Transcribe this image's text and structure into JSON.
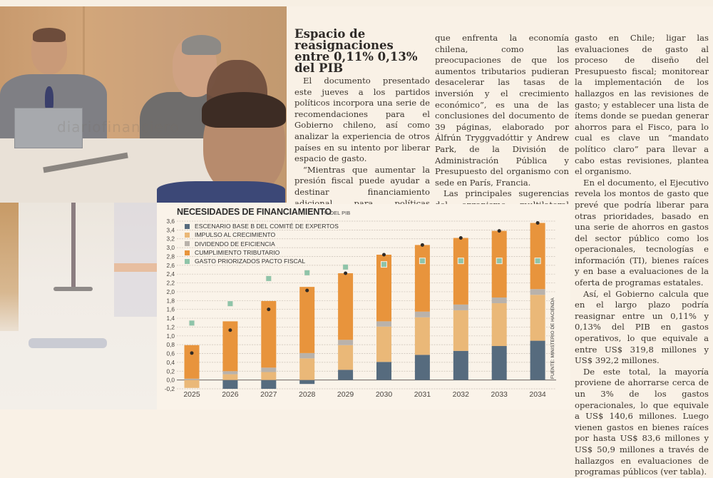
{
  "photo": {
    "description": "Reunión de trabajo con personas en una mesa",
    "watermark": "diariofinanciero"
  },
  "article": {
    "headline": "Espacio de reasignaciones entre 0,11% 0,13% del PIB",
    "paragraphs_col1": [
      "El documento presentado este jueves a los partidos políticos incorpora una serie de recomendaciones para el Gobierno chileno, así como analizar la experiencia de otros países en su intento por liberar espacio de gasto.",
      "“Mientras que aumentar la presión fiscal puede ayudar a destinar financiamiento adicional para políticas sociales, debe ser balanceado pensando en otros desafíos"
    ],
    "paragraphs_col2": [
      "que enfrenta la economía chilena, como las preocupaciones de que los aumentos tributarios pudieran desacelerar las tasas de inversión y el crecimiento económico”, es una de las conclusiones del documento de 39 páginas, elaborado por Álfrún Tryggvadóttir y Andrew Park, de la División de Administración Pública y Presupuesto del organismo con sede en París, Francia.",
      "Las principales sugerencias del organismo multilateral apuntan a institucionalizar y darle mayor periodicidad a las revisiones de"
    ],
    "paragraphs_col3": [
      "gasto en Chile; ligar las evaluaciones de gasto al proceso de diseño del Presupuesto fiscal; monitorear la implementación de los hallazgos en las revisiones de gasto; y establecer una lista de ítems donde se puedan generar ahorros para el Fisco, para lo cual es clave un “mandato político claro” para llevar a cabo estas revisiones, plantea el organismo.",
      "En el documento, el Ejecutivo revela los montos de gasto que prevé que podría liberar para otras prioridades, basado en una serie de ahorros en gastos del sector público como los operacionales, tecnologías e información (TI), bienes raíces y en base a evaluaciones de la oferta de programas estatales.",
      "Así, el Gobierno calcula que en el largo plazo podría reasignar entre un 0,11% y 0,13% del PIB en gastos operativos, lo que equivale a entre US$ 319,8 millones y US$ 392,2 millones.",
      "De este total, la mayoría proviene de ahorrarse cerca de un 3% de los gastos operacionales, lo que equivale a US$ 140,6 millones. Luego vienen gastos en bienes raíces por hasta US$ 83,6 millones y US$ 50,9 millones a través de hallazgos en evaluaciones de programas públicos (ver tabla)."
    ]
  },
  "chart_data": {
    "type": "bar",
    "stacked": true,
    "title": "NECESIDADES DE FINANCIAMIENTO",
    "unit_label": "% DEL PIB",
    "source": "FUENTE: MINISTERIO DE HACIENDA",
    "xlabel": "",
    "ylabel": "% del PIB",
    "ylim": [
      -0.2,
      3.6
    ],
    "yticks": [
      "3,6",
      "3,4",
      "3,2",
      "3,0",
      "2,8",
      "2,6",
      "2,4",
      "2,2",
      "2,0",
      "1,8",
      "1,6",
      "1,4",
      "1,2",
      "1,0",
      "0,8",
      "0,6",
      "0,4",
      "0,2",
      "0,0",
      "-0,2"
    ],
    "ytick_values": [
      3.6,
      3.4,
      3.2,
      3.0,
      2.8,
      2.6,
      2.4,
      2.2,
      2.0,
      1.8,
      1.6,
      1.4,
      1.2,
      1.0,
      0.8,
      0.6,
      0.4,
      0.2,
      0.0,
      -0.2
    ],
    "grid": true,
    "legend_position": "top-left",
    "categories": [
      "2025",
      "2026",
      "2027",
      "2028",
      "2029",
      "2030",
      "2031",
      "2032",
      "2033",
      "2034"
    ],
    "series": [
      {
        "name": "ESCENARIO BASE B DEL COMITÉ DE EXPERTOS",
        "kind": "bar",
        "color": "#566b7e",
        "values": [
          0.0,
          -0.2,
          -0.2,
          -0.09,
          0.23,
          0.41,
          0.57,
          0.66,
          0.77,
          0.89
        ]
      },
      {
        "name": "IMPULSO AL CRECIMIENTO",
        "kind": "bar",
        "color": "#eab878",
        "values": [
          -0.18,
          0.13,
          0.18,
          0.49,
          0.56,
          0.8,
          0.85,
          0.92,
          0.97,
          1.04
        ]
      },
      {
        "name": "DIVIDENDO DE EFICIENCIA",
        "kind": "bar",
        "color": "#b9b2ab",
        "values": [
          0.03,
          0.07,
          0.1,
          0.12,
          0.12,
          0.12,
          0.13,
          0.13,
          0.13,
          0.13
        ]
      },
      {
        "name": "CUMPLIMIENTO TRIBUTARIO",
        "kind": "bar",
        "color": "#e8943c",
        "values": [
          0.76,
          1.13,
          1.51,
          1.5,
          1.51,
          1.51,
          1.51,
          1.51,
          1.51,
          1.5
        ]
      },
      {
        "name": "GASTO PRIORIZADOS PACTO FISCAL",
        "kind": "marker-square",
        "color": "#8fc4a9",
        "values": [
          1.29,
          1.73,
          2.3,
          2.43,
          2.56,
          2.62,
          2.7,
          2.7,
          2.7,
          2.7
        ]
      },
      {
        "name": "TOTAL",
        "kind": "marker-dot",
        "color": "#2f2a26",
        "in_legend": false,
        "values": [
          0.61,
          1.13,
          1.6,
          2.03,
          2.42,
          2.84,
          3.06,
          3.22,
          3.38,
          3.56
        ]
      }
    ]
  }
}
